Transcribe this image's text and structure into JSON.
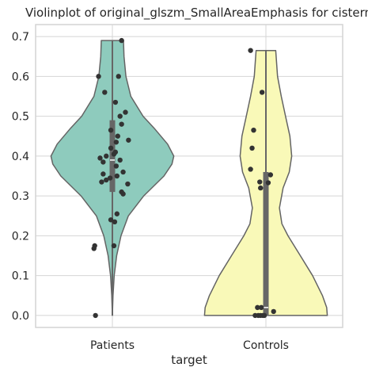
{
  "chart_data": {
    "type": "violin",
    "title": "Violinplot of original_glszm_SmallAreaEmphasis for cistern",
    "xlabel": "target",
    "ylabel": "",
    "categories": [
      "Patients",
      "Controls"
    ],
    "ylim": [
      -0.03,
      0.73
    ],
    "yticks": [
      0.0,
      0.1,
      0.2,
      0.3,
      0.4,
      0.5,
      0.6,
      0.7
    ],
    "ytick_labels": [
      "0.0",
      "0.1",
      "0.2",
      "0.3",
      "0.4",
      "0.5",
      "0.6",
      "0.7"
    ],
    "grid": true,
    "colors": {
      "Patients": "#8ecbbd",
      "Controls": "#f9f9b8",
      "outline": "#646464",
      "box": "#666666",
      "points": "#333333",
      "grid": "#d4d4d4",
      "frame": "#d4d4d4"
    },
    "violins": [
      {
        "name": "Patients",
        "box": {
          "q1": 0.31,
          "median": 0.39,
          "q3": 0.49,
          "whisker_low": 0.0,
          "whisker_high": 0.69
        },
        "density": [
          [
            0.0,
            0.0
          ],
          [
            0.05,
            0.01
          ],
          [
            0.1,
            0.03
          ],
          [
            0.15,
            0.07
          ],
          [
            0.2,
            0.14
          ],
          [
            0.25,
            0.26
          ],
          [
            0.3,
            0.51
          ],
          [
            0.35,
            0.84
          ],
          [
            0.38,
            0.97
          ],
          [
            0.4,
            1.0
          ],
          [
            0.43,
            0.9
          ],
          [
            0.47,
            0.68
          ],
          [
            0.5,
            0.5
          ],
          [
            0.55,
            0.3
          ],
          [
            0.6,
            0.22
          ],
          [
            0.65,
            0.19
          ],
          [
            0.69,
            0.18
          ]
        ],
        "points": [
          [
            0.12,
            0.69
          ],
          [
            -0.18,
            0.6
          ],
          [
            0.08,
            0.6
          ],
          [
            -0.1,
            0.56
          ],
          [
            0.04,
            0.535
          ],
          [
            0.17,
            0.51
          ],
          [
            0.1,
            0.5
          ],
          [
            0.12,
            0.48
          ],
          [
            -0.02,
            0.465
          ],
          [
            0.07,
            0.45
          ],
          [
            0.21,
            0.44
          ],
          [
            0.05,
            0.435
          ],
          [
            -0.02,
            0.42
          ],
          [
            0.04,
            0.41
          ],
          [
            -0.08,
            0.4
          ],
          [
            0.02,
            0.405
          ],
          [
            -0.16,
            0.395
          ],
          [
            0.1,
            0.39
          ],
          [
            -0.12,
            0.385
          ],
          [
            0.05,
            0.375
          ],
          [
            0.14,
            0.36
          ],
          [
            -0.12,
            0.355
          ],
          [
            0.06,
            0.35
          ],
          [
            -0.03,
            0.345
          ],
          [
            -0.08,
            0.34
          ],
          [
            -0.14,
            0.335
          ],
          [
            0.2,
            0.33
          ],
          [
            0.12,
            0.31
          ],
          [
            0.14,
            0.305
          ],
          [
            0.06,
            0.255
          ],
          [
            -0.02,
            0.24
          ],
          [
            0.03,
            0.235
          ],
          [
            0.02,
            0.175
          ],
          [
            -0.23,
            0.175
          ],
          [
            -0.24,
            0.168
          ],
          [
            -0.22,
            0.0
          ]
        ]
      },
      {
        "name": "Controls",
        "box": {
          "q1": 0.0,
          "median": 0.02,
          "q3": 0.36,
          "whisker_low": 0.0,
          "whisker_high": 0.665
        },
        "density": [
          [
            0.0,
            1.0
          ],
          [
            0.02,
            0.99
          ],
          [
            0.05,
            0.92
          ],
          [
            0.1,
            0.76
          ],
          [
            0.15,
            0.56
          ],
          [
            0.2,
            0.36
          ],
          [
            0.23,
            0.26
          ],
          [
            0.27,
            0.22
          ],
          [
            0.32,
            0.28
          ],
          [
            0.36,
            0.38
          ],
          [
            0.4,
            0.42
          ],
          [
            0.45,
            0.39
          ],
          [
            0.5,
            0.32
          ],
          [
            0.55,
            0.25
          ],
          [
            0.6,
            0.19
          ],
          [
            0.665,
            0.16
          ]
        ],
        "points": [
          [
            -0.2,
            0.665
          ],
          [
            -0.05,
            0.56
          ],
          [
            -0.16,
            0.465
          ],
          [
            -0.18,
            0.42
          ],
          [
            -0.2,
            0.367
          ],
          [
            0.06,
            0.353
          ],
          [
            -0.08,
            0.335
          ],
          [
            0.03,
            0.333
          ],
          [
            -0.07,
            0.32
          ],
          [
            -0.11,
            0.02
          ],
          [
            -0.06,
            0.02
          ],
          [
            0.1,
            0.01
          ],
          [
            -0.14,
            0.0
          ],
          [
            -0.1,
            0.0
          ],
          [
            -0.07,
            0.0
          ],
          [
            -0.04,
            0.0
          ],
          [
            -0.02,
            0.0
          ]
        ]
      }
    ]
  }
}
